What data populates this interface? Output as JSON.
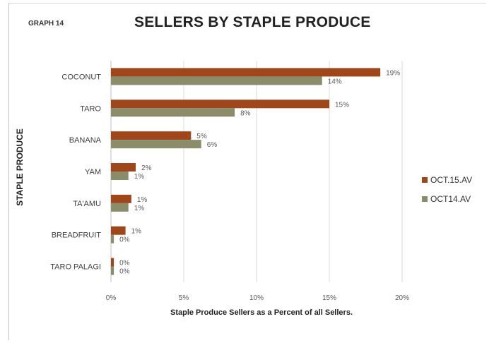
{
  "graph_number": "GRAPH 14",
  "chart_data": {
    "type": "bar",
    "orientation": "horizontal",
    "title": "SELLERS BY STAPLE PRODUCE",
    "xlabel": "Staple Produce Sellers as a Percent of all Sellers.",
    "ylabel": "STAPLE PRODUCE",
    "categories": [
      "COCONUT",
      "TARO",
      "BANANA",
      "YAM",
      "TA'AMU",
      "BREADFRUIT",
      "TARO PALAGI"
    ],
    "series": [
      {
        "name": "OCT.15.AV",
        "color": "#a0461b",
        "values": [
          18.5,
          15.0,
          5.5,
          1.7,
          1.4,
          1.0,
          0.2
        ],
        "labels": [
          "19%",
          "15%",
          "5%",
          "2%",
          "1%",
          "1%",
          "0%"
        ]
      },
      {
        "name": "OCT14.AV",
        "color": "#8a8c6a",
        "values": [
          14.5,
          8.5,
          6.2,
          1.2,
          1.2,
          0.2,
          0.2
        ],
        "labels": [
          "14%",
          "8%",
          "6%",
          "1%",
          "1%",
          "0%",
          "0%"
        ]
      }
    ],
    "xlim": [
      0,
      20
    ],
    "xticks": [
      0,
      5,
      10,
      15,
      20
    ],
    "xtick_labels": [
      "0%",
      "5%",
      "10%",
      "15%",
      "20%"
    ],
    "grid": "vertical",
    "legend_position": "right"
  }
}
